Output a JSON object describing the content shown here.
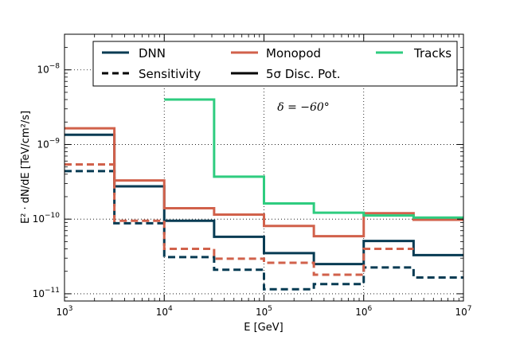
{
  "chart_data": {
    "type": "line",
    "xscale": "log",
    "yscale": "log",
    "xlim": [
      1000,
      10000000
    ],
    "ylim": [
      8e-12,
      3e-08
    ],
    "xlabel": "E [GeV]",
    "ylabel": "E² · dN/dE [TeV/cm²/s]",
    "grid": true,
    "annotation": "δ = −60°",
    "x_ticks": [
      {
        "base": "10",
        "exp": "3",
        "value": 1000
      },
      {
        "base": "10",
        "exp": "4",
        "value": 10000
      },
      {
        "base": "10",
        "exp": "5",
        "value": 100000
      },
      {
        "base": "10",
        "exp": "6",
        "value": 1000000
      },
      {
        "base": "10",
        "exp": "7",
        "value": 10000000
      }
    ],
    "y_ticks": [
      {
        "base": "10",
        "exp": "−11",
        "value": 1e-11
      },
      {
        "base": "10",
        "exp": "−10",
        "value": 1e-10
      },
      {
        "base": "10",
        "exp": "−9",
        "value": 1e-09
      },
      {
        "base": "10",
        "exp": "−8",
        "value": 1e-08
      }
    ],
    "legend": {
      "placement": "top",
      "entries": [
        {
          "label": "DNN",
          "color": "#073b53",
          "style": "solid"
        },
        {
          "label": "Monopod",
          "color": "#d1614b",
          "style": "solid"
        },
        {
          "label": "Tracks",
          "color": "#2ecc7f",
          "style": "solid"
        },
        {
          "label": "Sensitivity",
          "color": "#000000",
          "style": "dashed"
        },
        {
          "label": "5σ Disc. Pot.",
          "color": "#000000",
          "style": "solid"
        }
      ]
    },
    "bin_edges": [
      1000,
      3162,
      10000,
      31623,
      100000,
      316228,
      1000000,
      3162278,
      10000000
    ],
    "series": [
      {
        "name": "DNN",
        "kind": "5σ Disc. Pot.",
        "color": "#073b53",
        "style": "solid",
        "values": [
          1.35e-09,
          2.75e-10,
          9.5e-11,
          5.8e-11,
          3.5e-11,
          2.5e-11,
          5.1e-11,
          3.3e-11
        ]
      },
      {
        "name": "DNN",
        "kind": "Sensitivity",
        "color": "#073b53",
        "style": "dashed",
        "values": [
          4.4e-10,
          8.8e-11,
          3.1e-11,
          2.1e-11,
          1.15e-11,
          1.35e-11,
          2.25e-11,
          1.65e-11
        ]
      },
      {
        "name": "Monopod",
        "kind": "5σ Disc. Pot.",
        "color": "#d1614b",
        "style": "solid",
        "values": [
          1.65e-09,
          3.3e-10,
          1.4e-10,
          1.15e-10,
          8.1e-11,
          5.9e-11,
          1.2e-10,
          9.8e-11
        ]
      },
      {
        "name": "Monopod",
        "kind": "Sensitivity",
        "color": "#d1614b",
        "style": "dashed",
        "values": [
          5.4e-10,
          9.5e-11,
          4e-11,
          2.95e-11,
          2.6e-11,
          1.8e-11,
          4e-11,
          null
        ]
      },
      {
        "name": "Tracks",
        "kind": "5σ Disc. Pot.",
        "color": "#2ecc7f",
        "style": "solid",
        "values": [
          null,
          null,
          4e-09,
          3.7e-10,
          1.62e-10,
          1.22e-10,
          1.12e-10,
          1.05e-10
        ]
      }
    ]
  }
}
